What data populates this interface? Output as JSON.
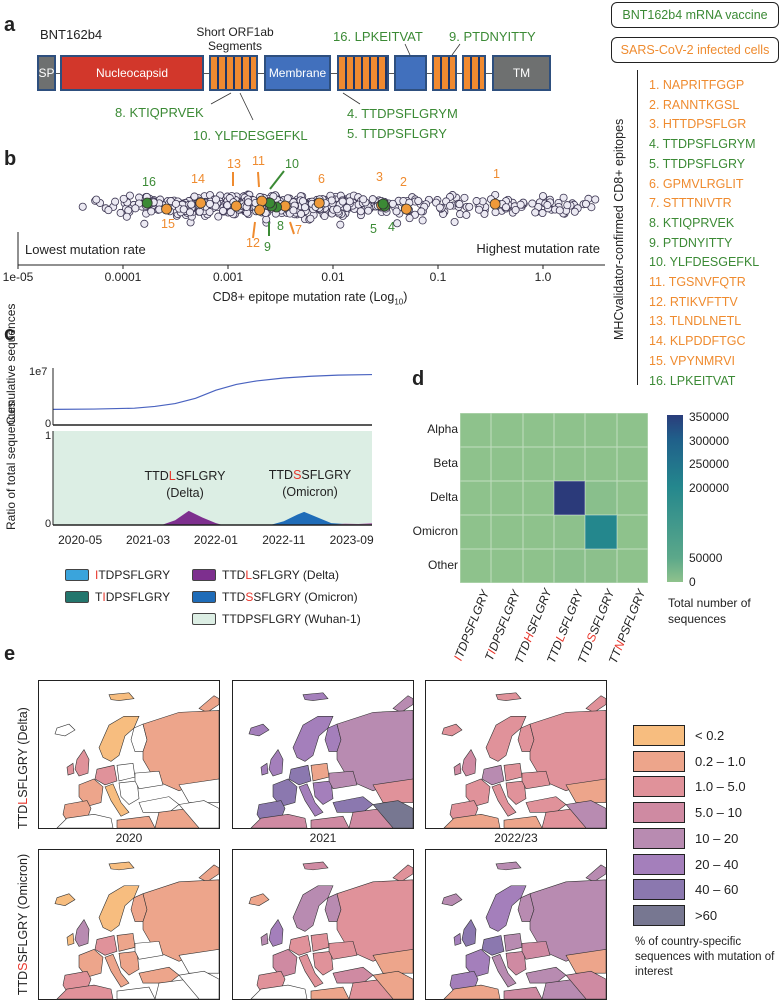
{
  "panels": {
    "a": "a",
    "b": "b",
    "c": "c",
    "d": "d",
    "e": "e"
  },
  "colors": {
    "orange": "#ef8b2f",
    "green": "#3b8a35",
    "red": "#e8352a",
    "nucleocapsid": "#d2372b",
    "membrane": "#4170bd",
    "grey": "#6e7070"
  },
  "panel_a": {
    "construct_name": "BNT162b4",
    "orf1ab_label": "Short ORF1ab Segments",
    "segments": {
      "sp": "SP",
      "nucleocapsid": "Nucleocapsid",
      "membrane": "Membrane",
      "tm": "TM"
    },
    "callouts": {
      "e16": "16. LPKEITVAT",
      "e9": "9. PTDNYITTY",
      "e8": "8. KTIQPRVEK",
      "e10": "10. YLFDESGEFKL",
      "e4": "4. TTDPSFLGRYM",
      "e5": "5. TTDPSFLGRY"
    }
  },
  "legend_boxes": {
    "vaccine": "BNT162b4 mRNA vaccine",
    "infected": "SARS-CoV-2 infected cells"
  },
  "epitope_list": {
    "title": "MHCvalidator-confirmed CD8+ epitopes",
    "items": [
      {
        "label": "1. NAPRITFGGP",
        "source": "infected"
      },
      {
        "label": "2. RANNTKGSL",
        "source": "infected"
      },
      {
        "label": "3. HTTDPSFLGR",
        "source": "infected"
      },
      {
        "label": "4. TTDPSFLGRYM",
        "source": "vaccine"
      },
      {
        "label": "5. TTDPSFLGRY",
        "source": "vaccine"
      },
      {
        "label": "6. GPMVLRGLIT",
        "source": "infected"
      },
      {
        "label": "7. STTTNIVTR",
        "source": "infected"
      },
      {
        "label": "8. KTIQPRVEK",
        "source": "vaccine"
      },
      {
        "label": "9. PTDNYITTY",
        "source": "vaccine"
      },
      {
        "label": "10. YLFDESGEFKL",
        "source": "vaccine"
      },
      {
        "label": "11. TGSNVFQTR",
        "source": "infected"
      },
      {
        "label": "12. RTIKVFTTV",
        "source": "infected"
      },
      {
        "label": "13. TLNDLNETL",
        "source": "infected"
      },
      {
        "label": "14. KLPDDFTGC",
        "source": "infected"
      },
      {
        "label": "15. VPYNMRVI",
        "source": "infected"
      },
      {
        "label": "16. LPKEITVAT",
        "source": "vaccine"
      }
    ]
  },
  "chart_data": [
    {
      "type": "scatter",
      "id": "b",
      "xlabel": "CD8+ epitope mutation rate (Log",
      "xlabel_sub": "10",
      "xlabel_end": ")",
      "xscale": "log",
      "xlim": [
        1e-05,
        4
      ],
      "xticks": [
        "1e-05",
        "0.0001",
        "0.001",
        "0.01",
        "0.1",
        "1.0"
      ],
      "xtick_values": [
        1e-05,
        0.0001,
        0.001,
        0.01,
        0.1,
        1.0
      ],
      "annotation_left": "Lowest mutation rate",
      "annotation_right": "Highest mutation rate",
      "highlighted": [
        {
          "id": "1",
          "rate": 0.35,
          "source": "infected"
        },
        {
          "id": "2",
          "rate": 0.05,
          "source": "infected"
        },
        {
          "id": "3",
          "rate": 0.029,
          "source": "infected"
        },
        {
          "id": "4",
          "rate": 0.031,
          "source": "vaccine"
        },
        {
          "id": "5",
          "rate": 0.03,
          "source": "vaccine"
        },
        {
          "id": "6",
          "rate": 0.0074,
          "source": "infected"
        },
        {
          "id": "7",
          "rate": 0.0035,
          "source": "infected"
        },
        {
          "id": "8",
          "rate": 0.0029,
          "source": "vaccine"
        },
        {
          "id": "9",
          "rate": 0.0026,
          "source": "vaccine"
        },
        {
          "id": "10",
          "rate": 0.0025,
          "source": "vaccine"
        },
        {
          "id": "11",
          "rate": 0.0021,
          "source": "infected"
        },
        {
          "id": "12",
          "rate": 0.002,
          "source": "infected"
        },
        {
          "id": "13",
          "rate": 0.0012,
          "source": "infected"
        },
        {
          "id": "14",
          "rate": 0.00055,
          "source": "infected"
        },
        {
          "id": "15",
          "rate": 0.00026,
          "source": "infected"
        },
        {
          "id": "16",
          "rate": 0.00017,
          "source": "vaccine"
        }
      ]
    },
    {
      "type": "line",
      "id": "c-cumulative",
      "ylabel": "Cumulative sequences",
      "y_multiplier": "1e7",
      "yticks": [
        "0"
      ],
      "months_from_2020_01": [
        0,
        6,
        12,
        15,
        18,
        21,
        24,
        27,
        30,
        34,
        38,
        42,
        47
      ],
      "values_millions": [
        2.7,
        2.75,
        2.9,
        3.2,
        3.7,
        4.6,
        6.0,
        7.0,
        7.6,
        8.1,
        8.4,
        8.6,
        8.7
      ]
    },
    {
      "type": "area",
      "id": "c-ratio",
      "ylabel": "Ratio of total sequences",
      "yticks": [
        "0",
        "1"
      ],
      "xticks": [
        "2020-05",
        "2021-03",
        "2022-01",
        "2022-11",
        "2023-09"
      ],
      "xtick_months": [
        4,
        14,
        24,
        34,
        44
      ],
      "x_month_range": [
        0,
        47
      ],
      "series": [
        {
          "name": "TTDLSFLGRY (Delta)",
          "color": "#7d2f8e",
          "months": [
            16,
            18,
            20,
            22,
            24,
            25
          ],
          "values": [
            0,
            0.05,
            0.15,
            0.08,
            0.02,
            0
          ]
        },
        {
          "name": "TTDSSFLGRY (Omicron)",
          "color": "#1f6cb8",
          "months": [
            32,
            34,
            36,
            37,
            39,
            41,
            43,
            45,
            47
          ],
          "values": [
            0,
            0.04,
            0.11,
            0.14,
            0.08,
            0.02,
            0.01,
            0.01,
            0.01
          ]
        },
        {
          "name": "TTDLSFLGRY tail",
          "color": "#b06ab0",
          "months": [
            41,
            43,
            45,
            47
          ],
          "values": [
            0,
            0.015,
            0.01,
            0.02
          ]
        }
      ],
      "annotations": [
        {
          "pre": "TTD",
          "mut": "L",
          "post": "SFLGRY",
          "variant": "(Delta)"
        },
        {
          "pre": "TTD",
          "mut": "S",
          "post": "SFLGRY",
          "variant": "(Omicron)"
        }
      ],
      "background_label": "TTDPSFLGRY (Wuhan-1)"
    },
    {
      "type": "heatmap",
      "id": "d",
      "rows": [
        "Alpha",
        "Beta",
        "Delta",
        "Omicron",
        "Other"
      ],
      "columns": [
        {
          "pre": "",
          "mut": "I",
          "post": "TDPSFLGRY"
        },
        {
          "pre": "T",
          "mut": "I",
          "post": "DPSFLGRY"
        },
        {
          "pre": "TTD",
          "mut": "H",
          "post": "SFLGRY"
        },
        {
          "pre": "TTD",
          "mut": "L",
          "post": "SFLGRY"
        },
        {
          "pre": "TTD",
          "mut": "S",
          "post": "SFLGRY"
        },
        {
          "pre": "TT",
          "mut": "N",
          "post": "PSFLGRY"
        }
      ],
      "values": [
        [
          500,
          500,
          500,
          800,
          500,
          500
        ],
        [
          500,
          500,
          500,
          500,
          500,
          500
        ],
        [
          500,
          500,
          500,
          355000,
          6000,
          500
        ],
        [
          500,
          500,
          500,
          1500,
          200000,
          500
        ],
        [
          500,
          500,
          500,
          4000,
          3000,
          500
        ]
      ],
      "colorbar_ticks": [
        "350000",
        "300000",
        "250000",
        "200000",
        "50000",
        "0"
      ],
      "colorbar_tick_values": [
        350000,
        300000,
        250000,
        200000,
        50000,
        0
      ],
      "colorbar_label": "Total number of sequences"
    }
  ],
  "legend_c": [
    {
      "pre": "",
      "mut": "I",
      "post": "TDPSFLGRY",
      "color": "#3aa4dc"
    },
    {
      "pre": "T",
      "mut": "I",
      "post": "DPSFLGRY",
      "color": "#23766d"
    },
    {
      "pre": "TTD",
      "mut": "L",
      "post": "SFLGRY (Delta)",
      "color": "#7d2f8e"
    },
    {
      "pre": "TTD",
      "mut": "S",
      "post": "SFLGRY (Omicron)",
      "color": "#1f6cb8"
    },
    {
      "pre": "",
      "mut": "",
      "post": "TTDPSFLGRY (Wuhan-1)",
      "color": "#dceee4"
    }
  ],
  "panel_e": {
    "row_labels": [
      {
        "pre": "TTD",
        "mut": "L",
        "post": "SFLGRY (Delta)"
      },
      {
        "pre": "TTD",
        "mut": "S",
        "post": "SFLGRY (Omicron)"
      }
    ],
    "years": [
      "2020",
      "2021",
      "2022/23"
    ],
    "legend_title": "% of country-specific sequences with mutation of interest",
    "bins": [
      {
        "label": "< 0.2",
        "color": "#f7bd7f"
      },
      {
        "label": "0.2 – 1.0",
        "color": "#eda58b"
      },
      {
        "label": "1.0 – 5.0",
        "color": "#e0929a"
      },
      {
        "label": "5.0 – 10",
        "color": "#cf8aa2"
      },
      {
        "label": "10 – 20",
        "color": "#b88bb1"
      },
      {
        "label": "20 – 40",
        "color": "#a47fbb"
      },
      {
        "label": "40 – 60",
        "color": "#8b78af"
      },
      {
        "label": ">60",
        "color": "#777791"
      }
    ],
    "region_order": [
      "iceland",
      "svalbard",
      "novaya",
      "norway_sweden",
      "finland",
      "russia",
      "uk",
      "ireland",
      "france",
      "spain",
      "germany",
      "poland",
      "italy",
      "balkans",
      "ukraine",
      "turkey",
      "n_africa",
      "libya_egypt",
      "middle_east",
      "kazakhstan",
      "iran"
    ],
    "maps": [
      [
        [
          -1,
          0,
          1,
          0,
          -1,
          1,
          2,
          2,
          1,
          1,
          2,
          -1,
          0,
          -1,
          -1,
          -1,
          -1,
          1,
          1,
          -1,
          -1
        ],
        [
          5,
          5,
          4,
          5,
          5,
          4,
          5,
          5,
          6,
          6,
          6,
          1,
          5,
          5,
          4,
          6,
          3,
          3,
          3,
          2,
          7
        ],
        [
          2,
          2,
          2,
          2,
          2,
          2,
          3,
          3,
          2,
          2,
          4,
          2,
          2,
          2,
          2,
          2,
          1,
          1,
          2,
          1,
          4
        ]
      ],
      [
        [
          0,
          0,
          1,
          0,
          1,
          1,
          4,
          0,
          1,
          2,
          2,
          1,
          1,
          1,
          -1,
          1,
          2,
          -1,
          -1,
          -1,
          -1
        ],
        [
          1,
          3,
          2,
          4,
          4,
          2,
          5,
          4,
          3,
          2,
          2,
          2,
          2,
          2,
          2,
          3,
          -1,
          1,
          2,
          1,
          1
        ],
        [
          4,
          4,
          4,
          5,
          4,
          4,
          6,
          5,
          5,
          5,
          6,
          4,
          4,
          3,
          3,
          4,
          1,
          3,
          4,
          1,
          3
        ]
      ]
    ]
  }
}
